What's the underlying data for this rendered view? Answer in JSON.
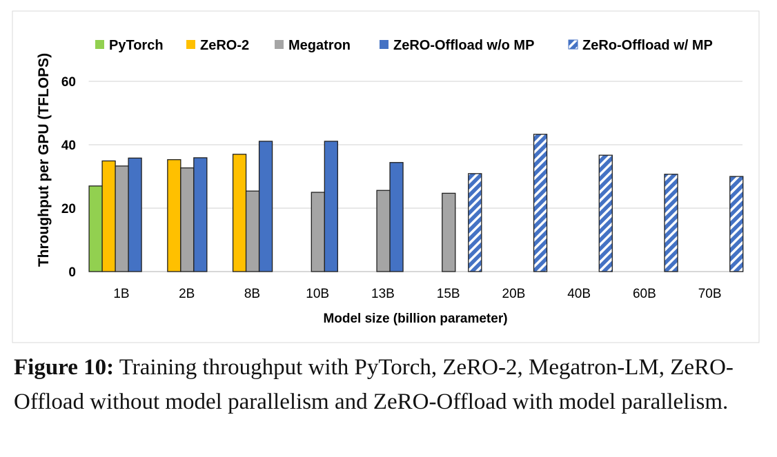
{
  "chart_data": {
    "type": "bar",
    "title": "",
    "xlabel": "Model size (billion parameter)",
    "ylabel": "Throughput per GPU (TFLOPS)",
    "ylim": [
      0,
      60
    ],
    "yticks": [
      0,
      20,
      40,
      60
    ],
    "grid": true,
    "legend_placement": "top",
    "categories": [
      "1B",
      "2B",
      "8B",
      "10B",
      "13B",
      "15B",
      "20B",
      "40B",
      "60B",
      "70B"
    ],
    "series": [
      {
        "name": "PyTorch",
        "color": "#92D050",
        "hatched": false,
        "values": [
          27.0,
          null,
          null,
          null,
          null,
          null,
          null,
          null,
          null,
          null
        ]
      },
      {
        "name": "ZeRO-2",
        "color": "#FFC000",
        "hatched": false,
        "values": [
          34.9,
          35.3,
          37.0,
          null,
          null,
          null,
          null,
          null,
          null,
          null
        ]
      },
      {
        "name": "Megatron",
        "color": "#A5A5A5",
        "hatched": false,
        "values": [
          33.3,
          32.7,
          25.4,
          25.0,
          25.6,
          24.7,
          null,
          null,
          null,
          null
        ]
      },
      {
        "name": "ZeRO-Offload w/o MP",
        "color": "#4472C4",
        "hatched": false,
        "values": [
          35.8,
          35.9,
          41.1,
          41.1,
          34.4,
          null,
          null,
          null,
          null,
          null
        ]
      },
      {
        "name": "ZeRo-Offload w/ MP",
        "color": "#4472C4",
        "hatched": true,
        "values": [
          null,
          null,
          null,
          null,
          null,
          30.9,
          43.3,
          36.7,
          30.7,
          30.0
        ]
      }
    ]
  },
  "caption": {
    "label": "Figure 10:",
    "text": " Training throughput with PyTorch, ZeRO-2, Megatron-LM, ZeRO-Offload without model parallelism and ZeRO-Offload with model parallelism."
  }
}
